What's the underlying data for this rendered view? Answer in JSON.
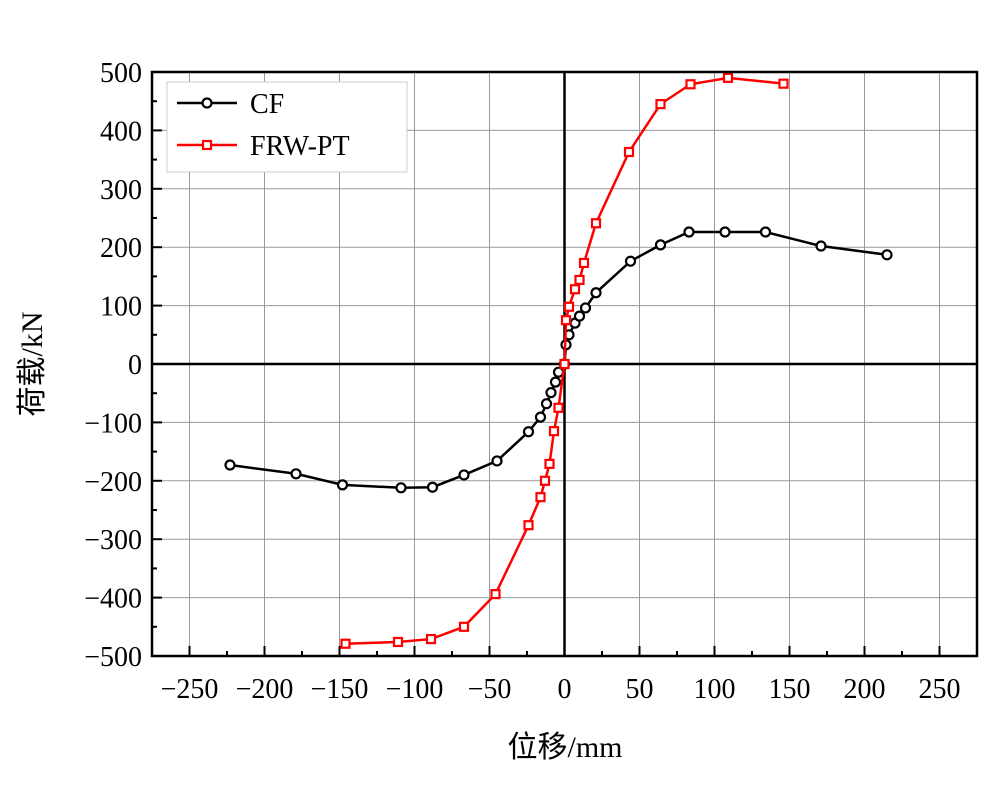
{
  "chart_data": {
    "type": "line",
    "title": "",
    "xlabel": "位移/mm",
    "ylabel": "荷载/kN",
    "xlim": [
      -275,
      275
    ],
    "ylim": [
      -500,
      500
    ],
    "xticks": [
      -250,
      -200,
      -150,
      -100,
      -50,
      0,
      50,
      100,
      150,
      200,
      250
    ],
    "yticks": [
      -500,
      -400,
      -300,
      -200,
      -100,
      0,
      100,
      200,
      300,
      400,
      500
    ],
    "grid": true,
    "legend": "top-left",
    "series": [
      {
        "name": "CF",
        "color": "#000000",
        "marker": "circle",
        "x": [
          -223,
          -179,
          -148,
          -109,
          -88,
          -67,
          -45,
          -24,
          -16,
          -12,
          -9,
          -6,
          -4,
          0,
          1,
          3,
          7,
          10,
          14,
          21,
          44,
          64,
          83,
          107,
          134,
          171,
          215
        ],
        "y": [
          -173,
          -188,
          -207,
          -212,
          -211,
          -190,
          -166,
          -116,
          -91,
          -68,
          -49,
          -31,
          -14,
          0,
          33,
          50,
          70,
          82,
          96,
          122,
          176,
          204,
          226,
          226,
          226,
          202,
          187
        ]
      },
      {
        "name": "FRW-PT",
        "color": "#ff0000",
        "marker": "square",
        "x": [
          -146,
          -111,
          -89,
          -67,
          -46,
          -24,
          -16,
          -13,
          -10,
          -7,
          -4,
          0,
          1,
          3,
          7,
          10,
          13,
          21,
          43,
          64,
          84,
          109,
          146
        ],
        "y": [
          -479,
          -476,
          -471,
          -450,
          -394,
          -276,
          -228,
          -200,
          -171,
          -115,
          -75,
          0,
          75,
          98,
          128,
          144,
          173,
          241,
          363,
          445,
          479,
          490,
          480
        ]
      }
    ]
  }
}
